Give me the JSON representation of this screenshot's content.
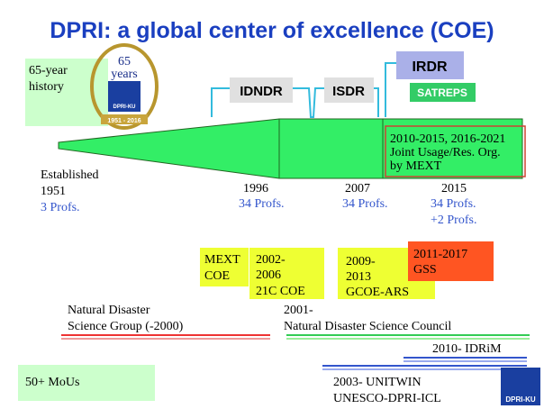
{
  "title": "DPRI: a global center of excellence (COE)",
  "history": {
    "lines": [
      "65-year",
      "history"
    ]
  },
  "anniversary_logo": {
    "number": "65",
    "word": "years",
    "name": "DPRI-KU",
    "years": "1951 - 2016"
  },
  "programs": {
    "idndr": "IDNDR",
    "isdr": "ISDR",
    "irdr": "IRDR",
    "satreps": "SATREPS"
  },
  "current_box": {
    "lines": [
      "2010-2015, 2016-2021",
      "Joint Usage/Res. Org.",
      "by MEXT"
    ]
  },
  "milestones": [
    {
      "lines": [
        "Established",
        "1951"
      ],
      "profs": [
        "3 Profs."
      ]
    },
    {
      "lines": [
        "1996"
      ],
      "profs": [
        "34 Profs."
      ]
    },
    {
      "lines": [
        "2007"
      ],
      "profs": [
        "34 Profs."
      ]
    },
    {
      "lines": [
        "2015"
      ],
      "profs": [
        "34 Profs.",
        "+2 Profs."
      ]
    }
  ],
  "coe_boxes": [
    {
      "lines": [
        "MEXT",
        "COE"
      ]
    },
    {
      "lines": [
        "2002-",
        "2006",
        "21C COE"
      ]
    },
    {
      "lines": [
        "2009-",
        "2013",
        "GCOE-ARS"
      ]
    },
    {
      "lines": [
        "2011-2017",
        "GSS"
      ]
    }
  ],
  "organizations": {
    "group": [
      "Natural Disaster",
      "Science Group (-2000)"
    ],
    "council": [
      "2001-",
      "Natural Disaster Science Council"
    ],
    "idrim": "2010- IDRiM",
    "unitwin": [
      "2003- UNITWIN",
      "UNESCO-DPRI-ICL"
    ]
  },
  "mous": "50+ MoUs",
  "footer_logo": "DPRI-KU"
}
